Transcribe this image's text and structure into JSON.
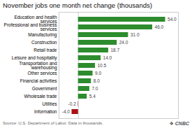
{
  "chart_data": {
    "type": "bar",
    "orientation": "horizontal",
    "title": "November jobs one month net change (thousands)",
    "categories": [
      "Information",
      "Utilities",
      "Wholesale trade",
      "Government",
      "Financial activities",
      "Other services",
      "Transportation and\nwarehousing",
      "Leisure and hospitality",
      "Retail trade",
      "Construction",
      "Manufacturing",
      "Professional and business\nservices",
      "Education and health\nservices"
    ],
    "values": [
      -4.0,
      -0.2,
      5.4,
      7.0,
      8.0,
      9.0,
      10.5,
      14.0,
      18.7,
      24.0,
      31.0,
      46.0,
      54.0
    ],
    "value_labels": [
      "-4.0",
      "-0.2",
      "5.4",
      "7.0",
      "8.0",
      "9.0",
      "10.5",
      "14.0",
      "18.7",
      "24.0",
      "31.0",
      "46.0",
      "54.0"
    ],
    "colors": [
      "#aa1111",
      "#aa1111",
      "#2d8c2d",
      "#2d8c2d",
      "#2d8c2d",
      "#2d8c2d",
      "#2d8c2d",
      "#2d8c2d",
      "#2d8c2d",
      "#2d8c2d",
      "#2d8c2d",
      "#2d8c2d",
      "#2d8c2d"
    ],
    "data_labels": true,
    "xlim": [
      -12,
      62
    ],
    "tick_labels": "y",
    "grid": false,
    "annotations": [
      "Source: U.S. Department of Labor. Data in thousands.",
      "❖ CNBC"
    ]
  }
}
